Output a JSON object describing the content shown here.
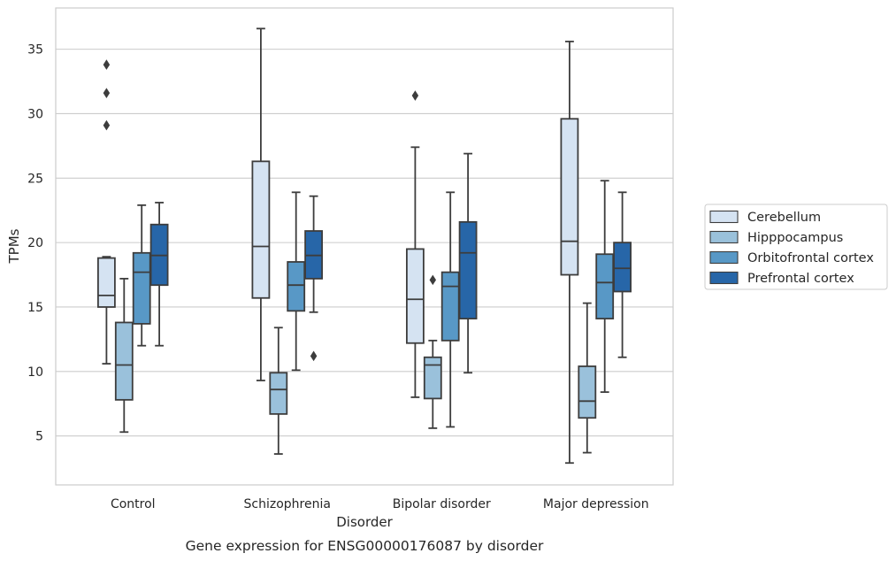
{
  "chart_data": {
    "type": "boxplot",
    "caption": "Gene expression for ENSG00000176087 by disorder",
    "xlabel": "Disorder",
    "ylabel": "TPMs",
    "ylim": [
      1.2,
      38.2
    ],
    "yticks": [
      5,
      10,
      15,
      20,
      25,
      30,
      35
    ],
    "grid": "horizontal",
    "legend_position": "right",
    "categories": [
      "Control",
      "Schizophrenia",
      "Bipolar disorder",
      "Major depression"
    ],
    "series": [
      {
        "name": "Cerebellum",
        "color": "#d5e3f2",
        "boxes": [
          {
            "whislo": 10.6,
            "q1": 15.0,
            "med": 15.9,
            "q3": 18.8,
            "whishi": 18.9,
            "fliers": [
              29.1,
              31.6,
              33.8
            ]
          },
          {
            "whislo": 9.3,
            "q1": 15.7,
            "med": 19.7,
            "q3": 26.3,
            "whishi": 36.6,
            "fliers": []
          },
          {
            "whislo": 8.0,
            "q1": 12.2,
            "med": 15.6,
            "q3": 19.5,
            "whishi": 27.4,
            "fliers": [
              31.4
            ]
          },
          {
            "whislo": 2.9,
            "q1": 17.5,
            "med": 20.1,
            "q3": 29.6,
            "whishi": 35.6,
            "fliers": []
          }
        ]
      },
      {
        "name": "Hipppocampus",
        "color": "#9ac1db",
        "boxes": [
          {
            "whislo": 5.3,
            "q1": 7.8,
            "med": 10.5,
            "q3": 13.8,
            "whishi": 17.2,
            "fliers": []
          },
          {
            "whislo": 3.6,
            "q1": 6.7,
            "med": 8.6,
            "q3": 9.9,
            "whishi": 13.4,
            "fliers": []
          },
          {
            "whislo": 5.6,
            "q1": 7.9,
            "med": 10.5,
            "q3": 11.1,
            "whishi": 12.4,
            "fliers": [
              17.1
            ]
          },
          {
            "whislo": 3.7,
            "q1": 6.4,
            "med": 7.7,
            "q3": 10.4,
            "whishi": 15.3,
            "fliers": []
          }
        ]
      },
      {
        "name": "Orbitofrontal cortex",
        "color": "#5898c6",
        "boxes": [
          {
            "whislo": 12.0,
            "q1": 13.7,
            "med": 17.7,
            "q3": 19.2,
            "whishi": 22.9,
            "fliers": []
          },
          {
            "whislo": 10.1,
            "q1": 14.7,
            "med": 16.7,
            "q3": 18.5,
            "whishi": 23.9,
            "fliers": []
          },
          {
            "whislo": 5.7,
            "q1": 12.4,
            "med": 16.6,
            "q3": 17.7,
            "whishi": 23.9,
            "fliers": []
          },
          {
            "whislo": 8.4,
            "q1": 14.1,
            "med": 16.9,
            "q3": 19.1,
            "whishi": 24.8,
            "fliers": []
          }
        ]
      },
      {
        "name": "Prefrontal cortex",
        "color": "#2766a8",
        "boxes": [
          {
            "whislo": 12.0,
            "q1": 16.7,
            "med": 19.0,
            "q3": 21.4,
            "whishi": 23.1,
            "fliers": []
          },
          {
            "whislo": 14.6,
            "q1": 17.2,
            "med": 19.0,
            "q3": 20.9,
            "whishi": 23.6,
            "fliers": [
              11.2
            ]
          },
          {
            "whislo": 9.9,
            "q1": 14.1,
            "med": 19.2,
            "q3": 21.6,
            "whishi": 26.9,
            "fliers": []
          },
          {
            "whislo": 11.1,
            "q1": 16.2,
            "med": 18.0,
            "q3": 20.0,
            "whishi": 23.9,
            "fliers": []
          }
        ]
      }
    ]
  }
}
